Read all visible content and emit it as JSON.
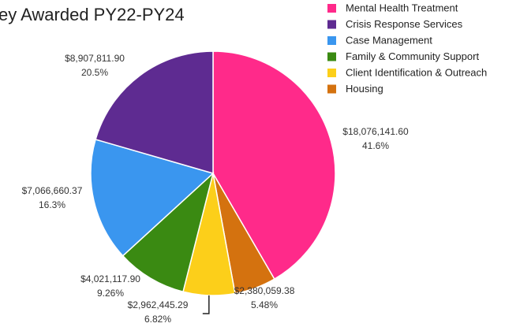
{
  "chart_data": {
    "type": "pie",
    "title": "ey Awarded PY22-PY24",
    "categories": [
      "Mental Health Treatment",
      "Crisis Response Services",
      "Case Management",
      "Family & Community Support",
      "Client Identification & Outreach",
      "Housing"
    ],
    "values": [
      18076141.6,
      8907811.9,
      7066660.37,
      4021117.9,
      2962445.29,
      2380059.38
    ],
    "value_labels": [
      "$18,076,141.60",
      "$8,907,811.90",
      "$7,066,660.37",
      "$4,021,117.90",
      "$2,962,445.29",
      "$2,380,059.38"
    ],
    "percentages": [
      41.6,
      20.5,
      16.3,
      9.26,
      6.82,
      5.48
    ],
    "percentage_labels": [
      "41.6%",
      "20.5%",
      "16.3%",
      "9.26%",
      "6.82%",
      "5.48%"
    ],
    "colors": [
      "#ff2a8a",
      "#5e2b91",
      "#3a96ef",
      "#3a8a12",
      "#fccf1a",
      "#d4720f"
    ],
    "legend": "top-right"
  }
}
